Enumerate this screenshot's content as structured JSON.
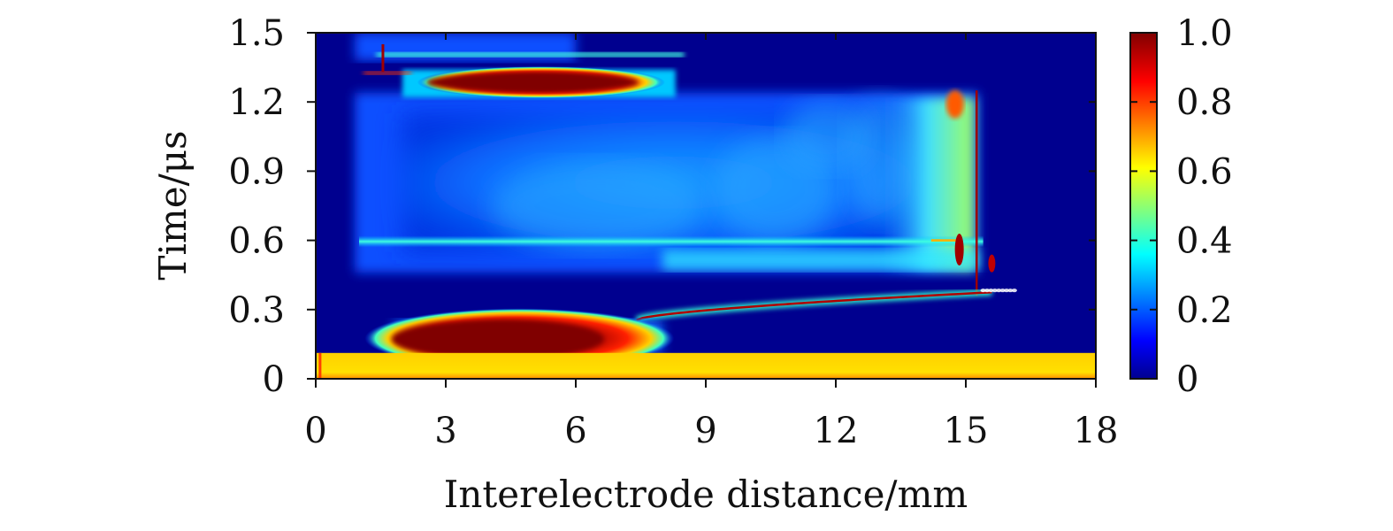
{
  "chart_data": {
    "type": "heatmap",
    "title": "",
    "xlabel": "Interelectrode distance/mm",
    "ylabel": "Time/μs",
    "xlim": [
      0,
      18
    ],
    "ylim": [
      0,
      1.5
    ],
    "xticks": [
      "0",
      "3",
      "6",
      "9",
      "12",
      "15",
      "18"
    ],
    "yticks": [
      "0",
      "0.3",
      "0.6",
      "0.9",
      "1.2",
      "1.5"
    ],
    "colorbar": {
      "range": [
        0,
        1.0
      ],
      "ticks": [
        "0",
        "0.2",
        "0.4",
        "0.6",
        "0.8",
        "1.0"
      ],
      "colormap": "jet",
      "colors": [
        "#00008f",
        "#0000ff",
        "#00ffff",
        "#ffff00",
        "#ff0000",
        "#800000"
      ]
    },
    "features": [
      {
        "region": "bottom band",
        "x": [
          0,
          18
        ],
        "t": [
          0,
          0.11
        ],
        "value": 0.72
      },
      {
        "region": "lower hot zone",
        "x": [
          2,
          7.5
        ],
        "t": [
          0.12,
          0.23
        ],
        "value": 1.0
      },
      {
        "region": "upper hot zone",
        "x": [
          2.5,
          8
        ],
        "t": [
          1.24,
          1.33
        ],
        "value": 1.0
      },
      {
        "region": "mid plateau",
        "x": [
          1,
          15
        ],
        "t": [
          0.47,
          1.23
        ],
        "value": 0.25
      },
      {
        "region": "bright line",
        "x": [
          1,
          15.5
        ],
        "t": [
          0.58,
          0.61
        ],
        "value": 0.45
      },
      {
        "region": "front line",
        "x": [
          7.5,
          16
        ],
        "t": [
          0.25,
          0.38
        ],
        "value": 1.0
      },
      {
        "region": "vertical streak",
        "x": [
          15.2,
          15.3
        ],
        "t": [
          0.36,
          1.25
        ],
        "value": 0.95
      }
    ]
  }
}
